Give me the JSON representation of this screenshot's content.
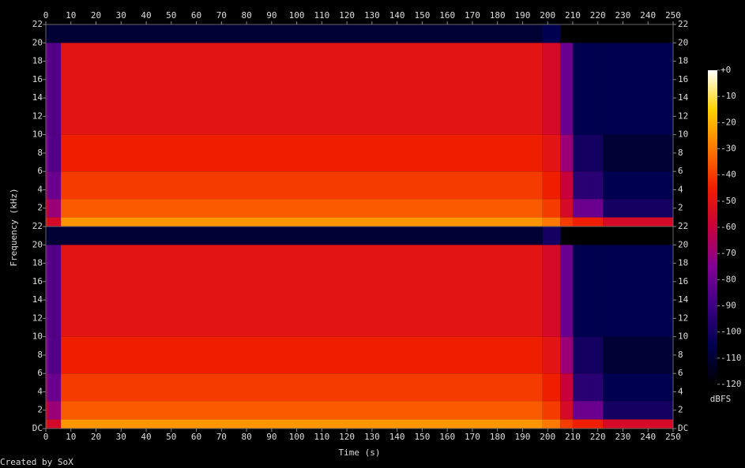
{
  "chart_data": [
    {
      "type": "heatmap",
      "x_edges": [
        0,
        1,
        6,
        198,
        205,
        210,
        222,
        250
      ],
      "y_edges": [
        0,
        1,
        3,
        6,
        10,
        20,
        22
      ],
      "values": [
        [
          -50,
          -60,
          -70,
          -75,
          -80,
          -110
        ],
        [
          -55,
          -70,
          -80,
          -85,
          -85,
          -110
        ],
        [
          -25,
          -35,
          -40,
          -45,
          -50,
          -110
        ],
        [
          -30,
          -40,
          -45,
          -50,
          -55,
          -105
        ],
        [
          -40,
          -55,
          -60,
          -70,
          -80,
          -120
        ],
        [
          -45,
          -80,
          -95,
          -100,
          -105,
          -120
        ],
        [
          -55,
          -100,
          -105,
          -110,
          -105,
          -120
        ]
      ],
      "xlim": [
        0,
        250
      ],
      "ylim": [
        0,
        22
      ],
      "xticks": [
        0,
        10,
        20,
        30,
        40,
        50,
        60,
        70,
        80,
        90,
        100,
        110,
        120,
        130,
        140,
        150,
        160,
        170,
        180,
        190,
        200,
        210,
        220,
        230,
        240,
        250
      ],
      "yticks": [
        2,
        4,
        6,
        8,
        10,
        12,
        14,
        16,
        18,
        20,
        22
      ]
    },
    {
      "type": "heatmap",
      "x_edges": [
        0,
        1,
        6,
        198,
        205,
        210,
        222,
        250
      ],
      "y_edges": [
        0,
        1,
        3,
        6,
        10,
        20,
        22
      ],
      "values": [
        [
          -50,
          -60,
          -70,
          -75,
          -80,
          -110
        ],
        [
          -55,
          -70,
          -80,
          -85,
          -85,
          -110
        ],
        [
          -25,
          -35,
          -40,
          -45,
          -50,
          -110
        ],
        [
          -30,
          -40,
          -45,
          -50,
          -55,
          -100
        ],
        [
          -40,
          -55,
          -60,
          -70,
          -80,
          -120
        ],
        [
          -45,
          -80,
          -95,
          -100,
          -105,
          -120
        ],
        [
          -55,
          -100,
          -105,
          -110,
          -105,
          -120
        ]
      ],
      "xlim": [
        0,
        250
      ],
      "ylim": [
        0,
        22
      ],
      "xlabel": "Time (s)",
      "xticks": [
        0,
        10,
        20,
        30,
        40,
        50,
        60,
        70,
        80,
        90,
        100,
        110,
        120,
        130,
        140,
        150,
        160,
        170,
        180,
        190,
        200,
        210,
        220,
        230,
        240,
        250
      ],
      "yticks": [
        {
          "value": 0,
          "label": "DC"
        },
        2,
        4,
        6,
        8,
        10,
        12,
        14,
        16,
        18,
        20,
        22
      ]
    }
  ],
  "ylabel": "Frequency (kHz)",
  "colorbar": {
    "clim": [
      -120,
      0
    ],
    "label": "dBFS",
    "ticks": [
      {
        "value": 0,
        "label": "+0"
      },
      -10,
      -20,
      -30,
      -40,
      -50,
      -60,
      -70,
      -80,
      -90,
      -100,
      -110,
      -120
    ]
  },
  "footer": "Created by SoX"
}
